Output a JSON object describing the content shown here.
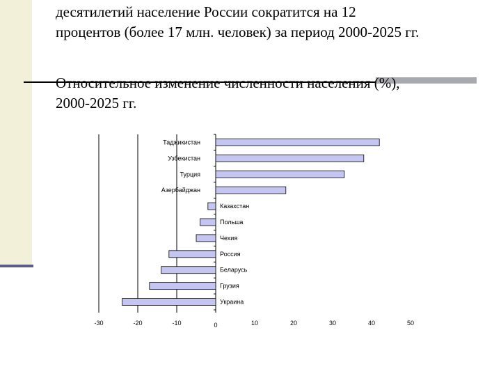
{
  "slide": {
    "intro_lines": [
      "десятилетий население России сократится на 12",
      "процентов (более 17 млн. человек) за период 2000-2025 гг."
    ],
    "chart_title_lines": [
      "Относительное изменение численности населения (%),",
      "2000-2025 гг."
    ]
  },
  "chart_data": {
    "type": "bar",
    "orientation": "horizontal",
    "title": "Относительное изменение численности населения (%), 2000-2025 гг.",
    "categories": [
      "Таджикистан",
      "Узбекистан",
      "Турция",
      "Азербайджан",
      "Казахстан",
      "Польша",
      "Чехия",
      "Россия",
      "Беларусь",
      "Грузия",
      "Украина"
    ],
    "values": [
      42,
      38,
      33,
      18,
      -2,
      -4,
      -5,
      -12,
      -14,
      -17,
      -24
    ],
    "xlim": [
      -30,
      50
    ],
    "x_ticks": [
      "-30",
      "-20",
      "-10",
      "0",
      "10",
      "20",
      "30",
      "40",
      "50"
    ],
    "grid": "vertical gridlines at -30, -20, -10",
    "colors": {
      "bar_fill": "#c5c5f2",
      "bar_stroke": "#000000"
    }
  }
}
